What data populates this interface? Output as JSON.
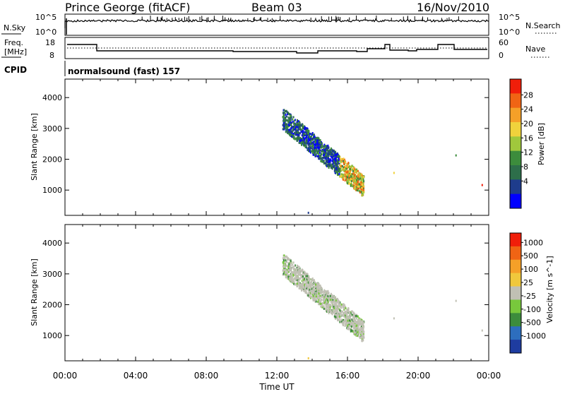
{
  "header": {
    "station": "Prince George (fitACF)",
    "beam": "Beam 03",
    "date": "16/Nov/2010"
  },
  "panels": {
    "nsky": {
      "left_label": "N.Sky",
      "right_label": "N.Search",
      "left_ticks": [
        "10^5",
        "10^0"
      ],
      "right_ticks": [
        "10^5",
        "10^0"
      ]
    },
    "freq": {
      "left_label_line1": "Freq.",
      "left_label_line2": "[MHz]",
      "right_label": "Nave",
      "left_ticks": [
        "18",
        "8"
      ],
      "right_ticks": [
        "60",
        "0"
      ]
    },
    "cpid": {
      "label": "CPID",
      "text": "normalsound (fast) 157"
    }
  },
  "colors": {
    "power_scale": [
      "#0000ff",
      "#1e3c8c",
      "#2d6e4a",
      "#3c8c3c",
      "#a0c83c",
      "#f0d23c",
      "#f5a028",
      "#f06414",
      "#f01e0a"
    ],
    "velocity_scale": [
      "#1e3ca0",
      "#2d6ebe",
      "#3c8c3c",
      "#78c83c",
      "#c0c0b4",
      "#f0c83c",
      "#f5a028",
      "#f06414",
      "#f01e0a"
    ],
    "ground_scatter": "#c0c0b4"
  },
  "chart_data": [
    {
      "type": "heatmap",
      "name": "power",
      "xlabel": "",
      "ylabel": "Slant Range [km]",
      "x_ticks": [
        "00:00",
        "04:00",
        "08:00",
        "12:00",
        "16:00",
        "20:00",
        "00:00"
      ],
      "y_ticks": [
        1000,
        2000,
        3000,
        4000
      ],
      "ylim": [
        180,
        4600
      ],
      "colorbar_label": "Power [dB]",
      "colorbar_ticks": [
        4,
        8,
        12,
        16,
        20,
        24,
        28
      ],
      "grid": false
    },
    {
      "type": "heatmap",
      "name": "velocity",
      "xlabel": "Time UT",
      "ylabel": "Slant Range [km]",
      "x_ticks": [
        "00:00",
        "04:00",
        "08:00",
        "12:00",
        "16:00",
        "20:00",
        "00:00"
      ],
      "y_ticks": [
        1000,
        2000,
        3000,
        4000
      ],
      "ylim": [
        180,
        4600
      ],
      "colorbar_label": "Velocity [m s^-1]",
      "colorbar_ticks": [
        1000,
        500,
        100,
        25,
        -25,
        -100,
        -500,
        -1000
      ],
      "grid": false
    },
    {
      "type": "line",
      "name": "nsky",
      "x_range_hours": [
        0,
        24
      ]
    },
    {
      "type": "line",
      "name": "frequency_and_nave",
      "series": [
        {
          "name": "",
          "x": [
            0,
            1.8,
            1.8,
            24
          ],
          "y": [
            14.5,
            14.5,
            12.5,
            12.5
          ]
        }
      ]
    }
  ]
}
